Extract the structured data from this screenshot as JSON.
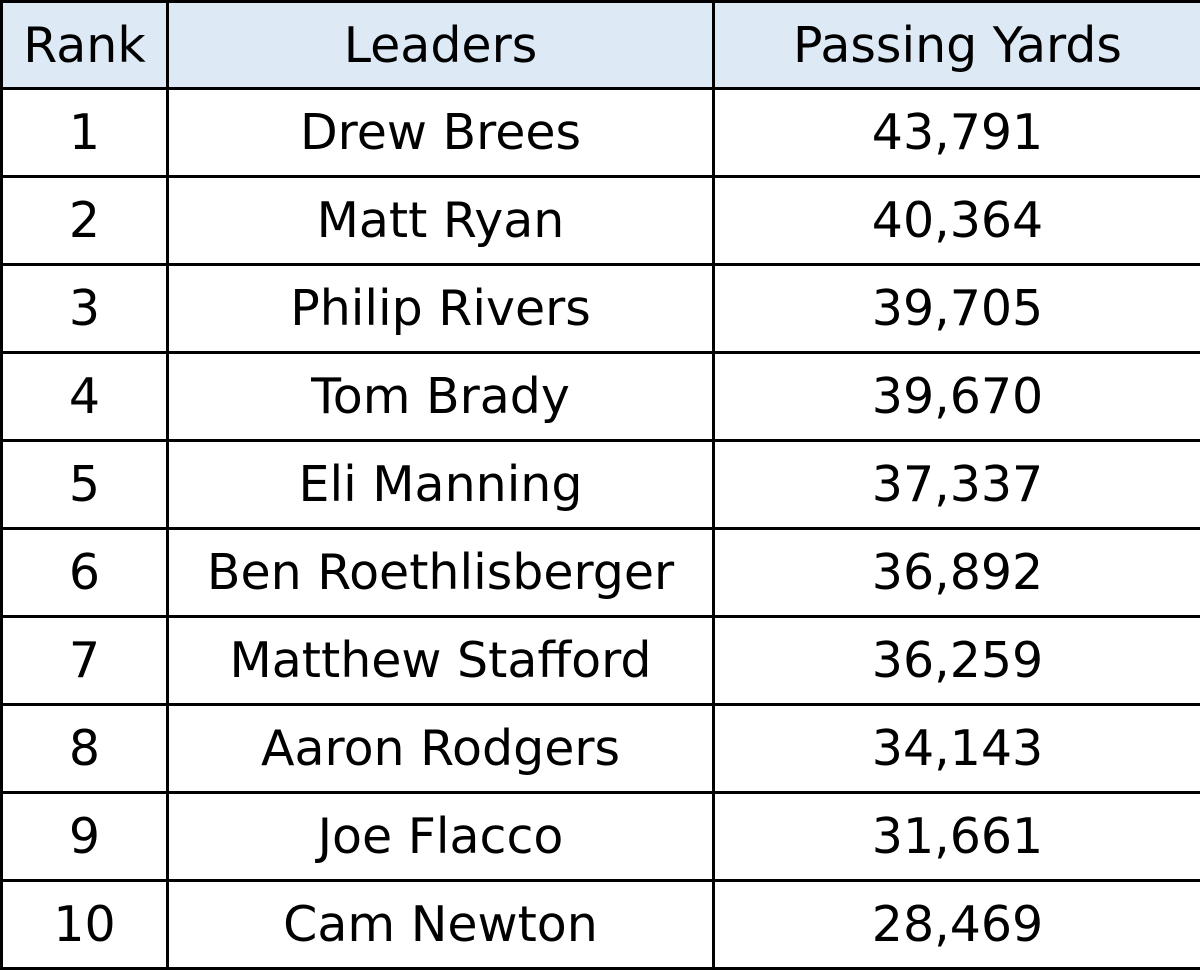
{
  "table": {
    "headers": {
      "rank": "Rank",
      "leaders": "Leaders",
      "yards": "Passing Yards"
    },
    "header_background": "#dde9f5",
    "rows": [
      {
        "rank": "1",
        "leader": "Drew Brees",
        "yards": "43,791"
      },
      {
        "rank": "2",
        "leader": "Matt Ryan",
        "yards": "40,364"
      },
      {
        "rank": "3",
        "leader": "Philip Rivers",
        "yards": "39,705"
      },
      {
        "rank": "4",
        "leader": "Tom Brady",
        "yards": "39,670"
      },
      {
        "rank": "5",
        "leader": "Eli Manning",
        "yards": "37,337"
      },
      {
        "rank": "6",
        "leader": "Ben Roethlisberger",
        "yards": "36,892"
      },
      {
        "rank": "7",
        "leader": "Matthew Stafford",
        "yards": "36,259"
      },
      {
        "rank": "8",
        "leader": "Aaron Rodgers",
        "yards": "34,143"
      },
      {
        "rank": "9",
        "leader": "Joe Flacco",
        "yards": "31,661"
      },
      {
        "rank": "10",
        "leader": "Cam Newton",
        "yards": "28,469"
      }
    ]
  }
}
